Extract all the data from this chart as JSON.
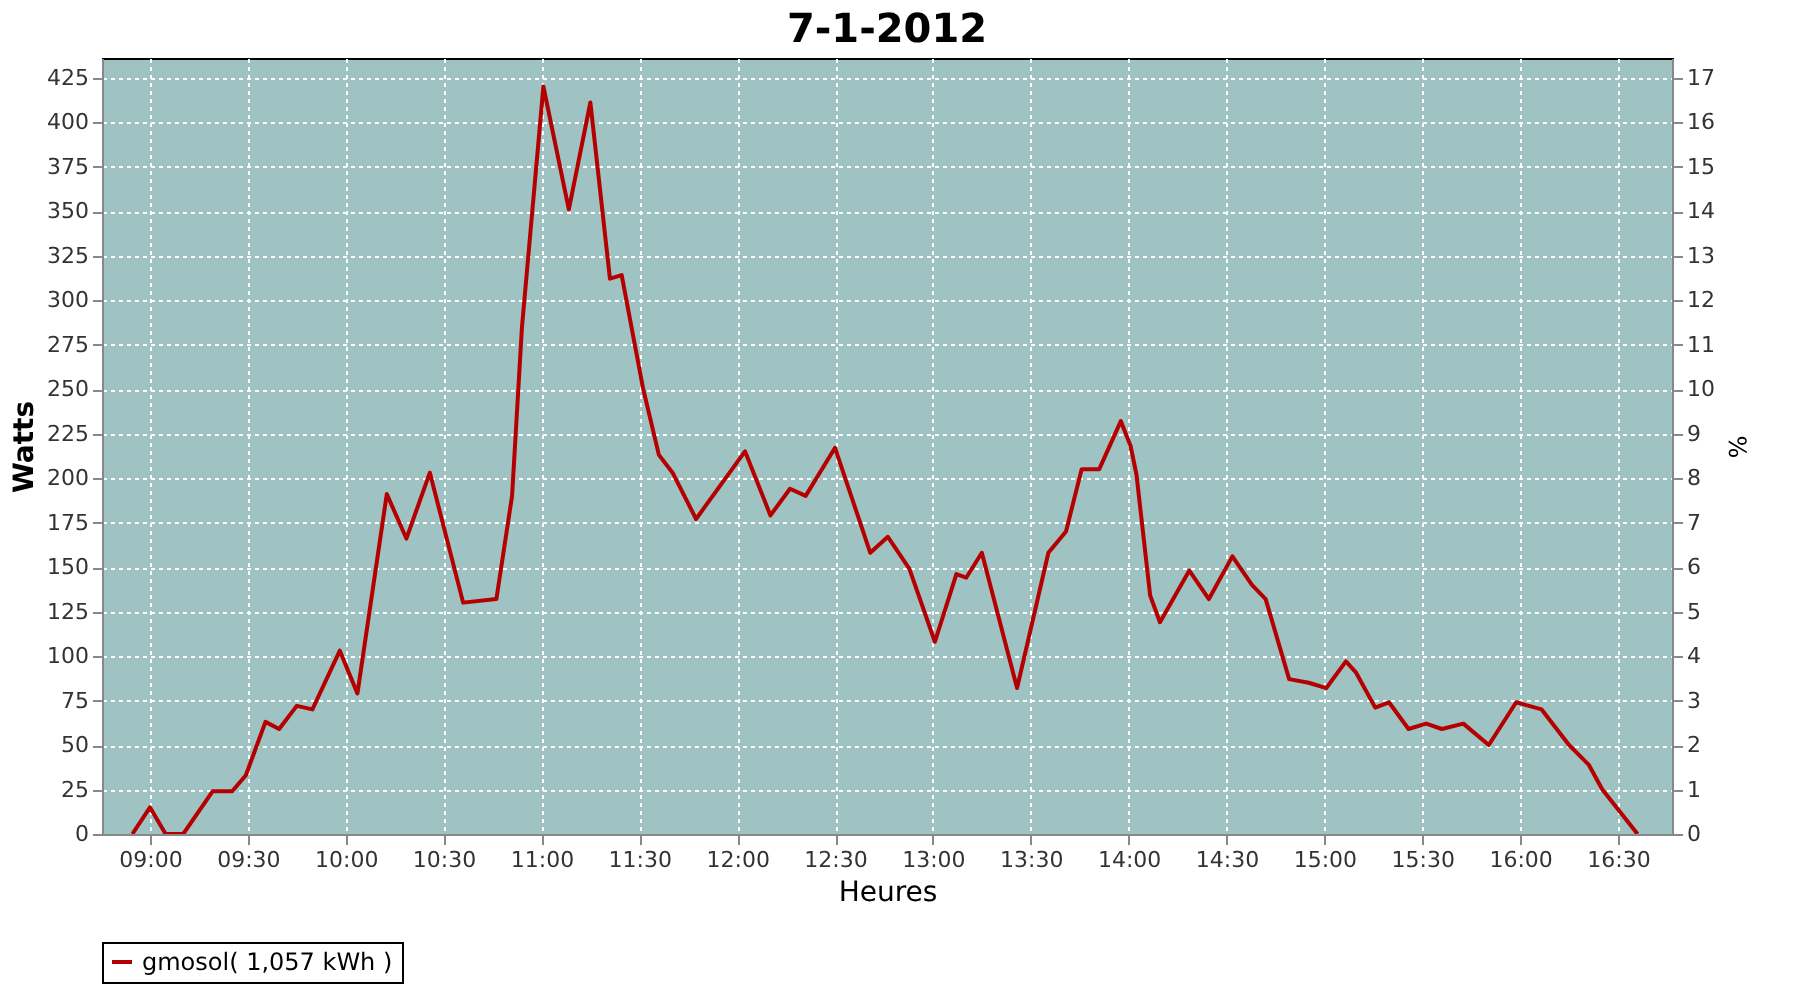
{
  "chart_data": {
    "type": "line",
    "title": "7-1-2012",
    "xlabel": "Heures",
    "ylabel": "Watts",
    "y2label": "%",
    "xlim": [
      8.755,
      16.776
    ],
    "xticks": [
      {
        "value": 9,
        "label": "09:00"
      },
      {
        "value": 9.5,
        "label": "09:30"
      },
      {
        "value": 10,
        "label": "10:00"
      },
      {
        "value": 10.5,
        "label": "10:30"
      },
      {
        "value": 11,
        "label": "11:00"
      },
      {
        "value": 11.5,
        "label": "11:30"
      },
      {
        "value": 12,
        "label": "12:00"
      },
      {
        "value": 12.5,
        "label": "12:30"
      },
      {
        "value": 13,
        "label": "13:00"
      },
      {
        "value": 13.5,
        "label": "13:30"
      },
      {
        "value": 14,
        "label": "14:00"
      },
      {
        "value": 14.5,
        "label": "14:30"
      },
      {
        "value": 15,
        "label": "15:00"
      },
      {
        "value": 15.5,
        "label": "15:30"
      },
      {
        "value": 16,
        "label": "16:00"
      },
      {
        "value": 16.5,
        "label": "16:30"
      }
    ],
    "ylim": [
      0,
      436
    ],
    "yticks": [
      0,
      25,
      50,
      75,
      100,
      125,
      150,
      175,
      200,
      225,
      250,
      275,
      300,
      325,
      350,
      375,
      400,
      425
    ],
    "y2lim": [
      0,
      17.44
    ],
    "y2ticks": [
      0,
      1,
      2,
      3,
      4,
      5,
      6,
      7,
      8,
      9,
      10,
      11,
      12,
      13,
      14,
      15,
      16,
      17
    ],
    "x": [
      8.91,
      9.0,
      9.08,
      9.17,
      9.32,
      9.42,
      9.49,
      9.59,
      9.66,
      9.75,
      9.83,
      9.97,
      10.06,
      10.21,
      10.31,
      10.43,
      10.6,
      10.77,
      10.85,
      10.9,
      11.01,
      11.14,
      11.25,
      11.35,
      11.41,
      11.52,
      11.6,
      11.67,
      11.79,
      12.04,
      12.17,
      12.27,
      12.35,
      12.5,
      12.68,
      12.77,
      12.88,
      13.01,
      13.12,
      13.17,
      13.25,
      13.43,
      13.59,
      13.68,
      13.76,
      13.85,
      13.96,
      14.01,
      14.04,
      14.11,
      14.16,
      14.31,
      14.41,
      14.53,
      14.63,
      14.7,
      14.82,
      14.92,
      15.01,
      15.11,
      15.16,
      15.26,
      15.33,
      15.43,
      15.52,
      15.6,
      15.71,
      15.84,
      15.98,
      16.11,
      16.25,
      16.35,
      16.42,
      16.6
    ],
    "series": [
      {
        "name": "gmosol( 1,057 kWh )",
        "color": "#b40000",
        "values": [
          0,
          15,
          0,
          0,
          24,
          24,
          33,
          63,
          59,
          72,
          70,
          103,
          79,
          191,
          166,
          203,
          130,
          132,
          190,
          284,
          420,
          351,
          411,
          312,
          314,
          250,
          213,
          203,
          177,
          215,
          179,
          194,
          190,
          217,
          158,
          167,
          149,
          108,
          146,
          144,
          158,
          82,
          158,
          170,
          205,
          205,
          232,
          218,
          202,
          134,
          119,
          148,
          132,
          156,
          140,
          132,
          87,
          85,
          82,
          97,
          91,
          71,
          74,
          59,
          62,
          59,
          62,
          50,
          74,
          70,
          50,
          39,
          25,
          0
        ]
      }
    ],
    "grid": true,
    "legend": "bottom",
    "marker": "none",
    "line_style": "solid"
  }
}
